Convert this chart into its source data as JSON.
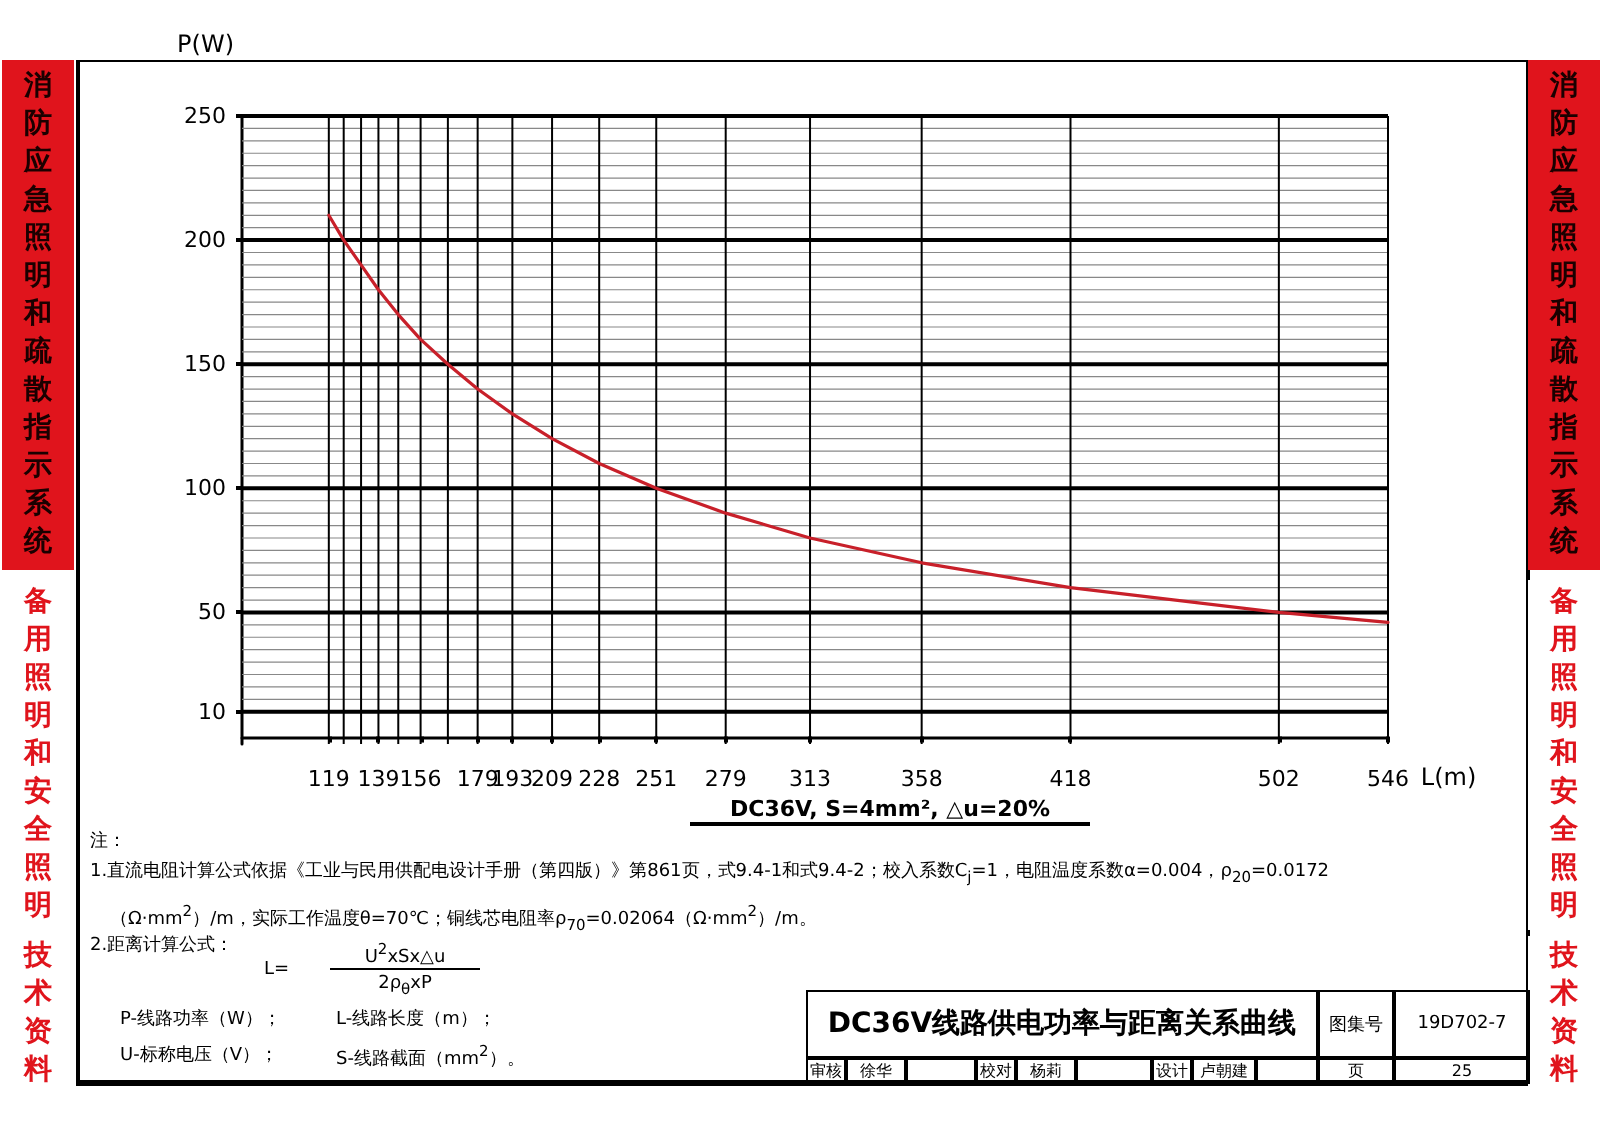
{
  "chart_data": {
    "type": "line",
    "title": "DC36V线路供电功率与距离关系曲线",
    "subtitle": "DC36V, S=4mm², △u=20%",
    "xlabel": "L(m)",
    "ylabel": "P(W)",
    "x": [
      119,
      125,
      132,
      139,
      147,
      156,
      167,
      179,
      193,
      209,
      228,
      251,
      279,
      313,
      358,
      418,
      502,
      546
    ],
    "series": [
      {
        "color": "#c8202a",
        "values": [
          210,
          200,
          190,
          180,
          170,
          160,
          150,
          140,
          130,
          120,
          110,
          100,
          90,
          80,
          70,
          60,
          50,
          46
        ]
      }
    ],
    "xlim": [
      84,
      546
    ],
    "xticks": [
      119,
      {
        "value": 125,
        "label": null
      },
      {
        "value": 132,
        "label": null
      },
      139,
      {
        "value": 147,
        "label": null
      },
      156,
      {
        "value": 167,
        "label": null
      },
      179,
      193,
      209,
      228,
      251,
      279,
      313,
      358,
      418,
      502,
      546
    ],
    "ylim": [
      -3,
      250
    ],
    "yticks": [
      10,
      {
        "value": 15,
        "label": null
      },
      {
        "value": 20,
        "label": null
      },
      {
        "value": 25,
        "label": null
      },
      {
        "value": 30,
        "label": null
      },
      {
        "value": 35,
        "label": null
      },
      {
        "value": 40,
        "label": null
      },
      {
        "value": 45,
        "label": null
      },
      50,
      {
        "value": 55,
        "label": null
      },
      {
        "value": 60,
        "label": null
      },
      {
        "value": 65,
        "label": null
      },
      {
        "value": 70,
        "label": null
      },
      {
        "value": 75,
        "label": null
      },
      {
        "value": 80,
        "label": null
      },
      {
        "value": 85,
        "label": null
      },
      {
        "value": 90,
        "label": null
      },
      {
        "value": 95,
        "label": null
      },
      100,
      {
        "value": 105,
        "label": null
      },
      {
        "value": 110,
        "label": null
      },
      {
        "value": 115,
        "label": null
      },
      {
        "value": 120,
        "label": null
      },
      {
        "value": 125,
        "label": null
      },
      {
        "value": 130,
        "label": null
      },
      {
        "value": 135,
        "label": null
      },
      {
        "value": 140,
        "label": null
      },
      {
        "value": 145,
        "label": null
      },
      150,
      {
        "value": 155,
        "label": null
      },
      {
        "value": 160,
        "label": null
      },
      {
        "value": 165,
        "label": null
      },
      {
        "value": 170,
        "label": null
      },
      {
        "value": 175,
        "label": null
      },
      {
        "value": 180,
        "label": null
      },
      {
        "value": 185,
        "label": null
      },
      {
        "value": 190,
        "label": null
      },
      {
        "value": 195,
        "label": null
      },
      200,
      {
        "value": 205,
        "label": null
      },
      {
        "value": 210,
        "label": null
      },
      {
        "value": 215,
        "label": null
      },
      {
        "value": 220,
        "label": null
      },
      {
        "value": 225,
        "label": null
      },
      {
        "value": 230,
        "label": null
      },
      {
        "value": 235,
        "label": null
      },
      {
        "value": 240,
        "label": null
      },
      {
        "value": 245,
        "label": null
      },
      250
    ],
    "grid": true,
    "marker": "none",
    "line_style": "solid",
    "annotations": [
      "消防应急照明和疏散指示系统",
      "备用照明和安全照明",
      "技术资料",
      "注：",
      "1.直流电阻计算公式依据《工业与民用供配电设计手册（第四版）》第861页，式9.4-1和式9.4-2；校入系数C$_{j}$=1，电阻温度系数α=0.004，ρ$_{20}$=0.0172 （Ω·mm$^{2}$）/m，实际工作温度θ=70℃；铜线芯电阻率ρ$_{70}$=0.02064（Ω·mm$^{2}$）/m。",
      "2.距离计算公式：",
      "L=",
      "U$^{2}$xSx△u",
      "2ρ$_{θ}$xP",
      "P-线路功率（W）；",
      "L-线路长度（m）；",
      "U-标称电压（V）；",
      "S-线路截面（mm$^{2}$）。",
      "图集号",
      "19D702-7",
      "审核",
      "徐华",
      "校对",
      "杨莉",
      "设计",
      "卢朝建",
      "页",
      "25"
    ]
  }
}
